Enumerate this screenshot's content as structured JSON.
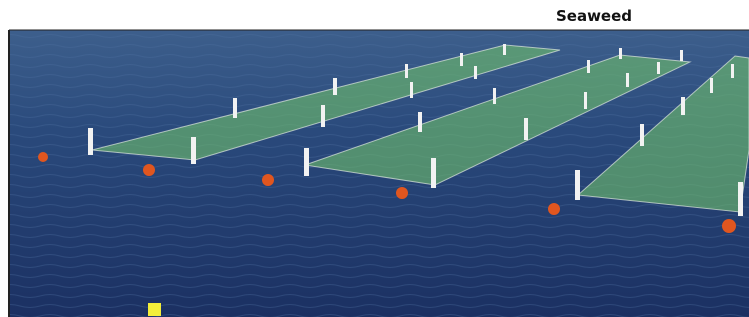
{
  "image": {
    "label": "Seaweed"
  }
}
